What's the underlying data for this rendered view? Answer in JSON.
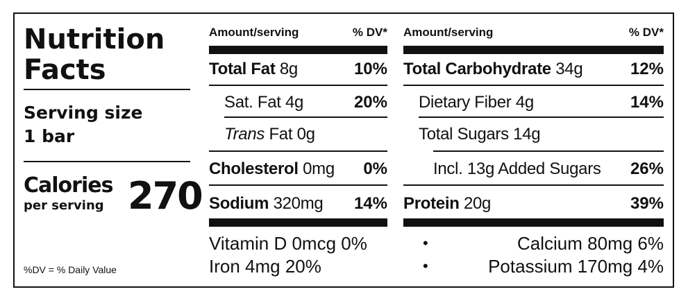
{
  "label": {
    "title_line1": "Nutrition",
    "title_line2": "Facts",
    "serving_line1": "Serving size",
    "serving_line2": "1 bar",
    "calories_word": "Calories",
    "calories_sub": "per serving",
    "calories_value": "270",
    "footnote": "%DV = % Daily Value"
  },
  "left_table": {
    "header_amount": "Amount/serving",
    "header_dv": "% DV*",
    "rows": [
      {
        "name": "Total Fat",
        "amount": " 8g",
        "dv": "10%"
      },
      {
        "name": "Sat. Fat",
        "amount": " 4g",
        "dv": "20%"
      },
      {
        "name_italic": "Trans",
        "name": " Fat",
        "amount": " 0g",
        "dv": ""
      },
      {
        "name": "Cholesterol",
        "amount": " 0mg",
        "dv": "0%"
      },
      {
        "name": "Sodium",
        "amount": " 320mg",
        "dv": "14%"
      }
    ],
    "vitamins": [
      "Vitamin D 0mcg 0%",
      "Iron 4mg 20%"
    ]
  },
  "right_table": {
    "header_amount": "Amount/serving",
    "header_dv": "% DV*",
    "rows": [
      {
        "name": "Total Carbohydrate",
        "amount": " 34g",
        "dv": "12%"
      },
      {
        "name": "Dietary Fiber",
        "amount": " 4g",
        "dv": "14%"
      },
      {
        "name": "Total Sugars",
        "amount": " 14g",
        "dv": ""
      },
      {
        "name": "Incl. 13g Added Sugars",
        "amount": "",
        "dv": "26%"
      },
      {
        "name": "Protein",
        "amount": " 20g",
        "dv": "39%"
      }
    ],
    "minerals": [
      {
        "bullet": "•",
        "text": "Calcium 80mg 6%"
      },
      {
        "bullet": "•",
        "text": "Potassium 170mg 4%"
      }
    ]
  }
}
